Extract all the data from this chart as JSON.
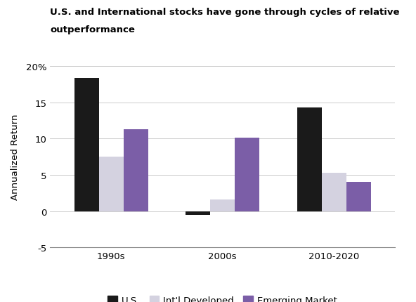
{
  "title_line1": "U.S. and International stocks have gone through cycles of relative",
  "title_line2": "outperformance",
  "ylabel": "Annualized Return",
  "categories": [
    "1990s",
    "2000s",
    "2010-2020"
  ],
  "series": {
    "U.S.": [
      18.3,
      -0.5,
      14.3
    ],
    "Int'l Developed": [
      7.5,
      1.6,
      5.3
    ],
    "Emerging Market": [
      11.3,
      10.1,
      4.0
    ]
  },
  "colors": {
    "U.S.": "#1a1a1a",
    "Int'l Developed": "#d4d2e0",
    "Emerging Market": "#7b5ea7"
  },
  "ylim": [
    -5,
    20
  ],
  "yticks": [
    -5,
    0,
    5,
    10,
    15,
    20
  ],
  "ytick_labels": [
    "-5",
    "0",
    "5",
    "10",
    "15",
    "20%"
  ],
  "bar_width": 0.22,
  "background_color": "#ffffff",
  "title_fontsize": 9.5,
  "axis_fontsize": 9.5,
  "legend_fontsize": 9.5
}
